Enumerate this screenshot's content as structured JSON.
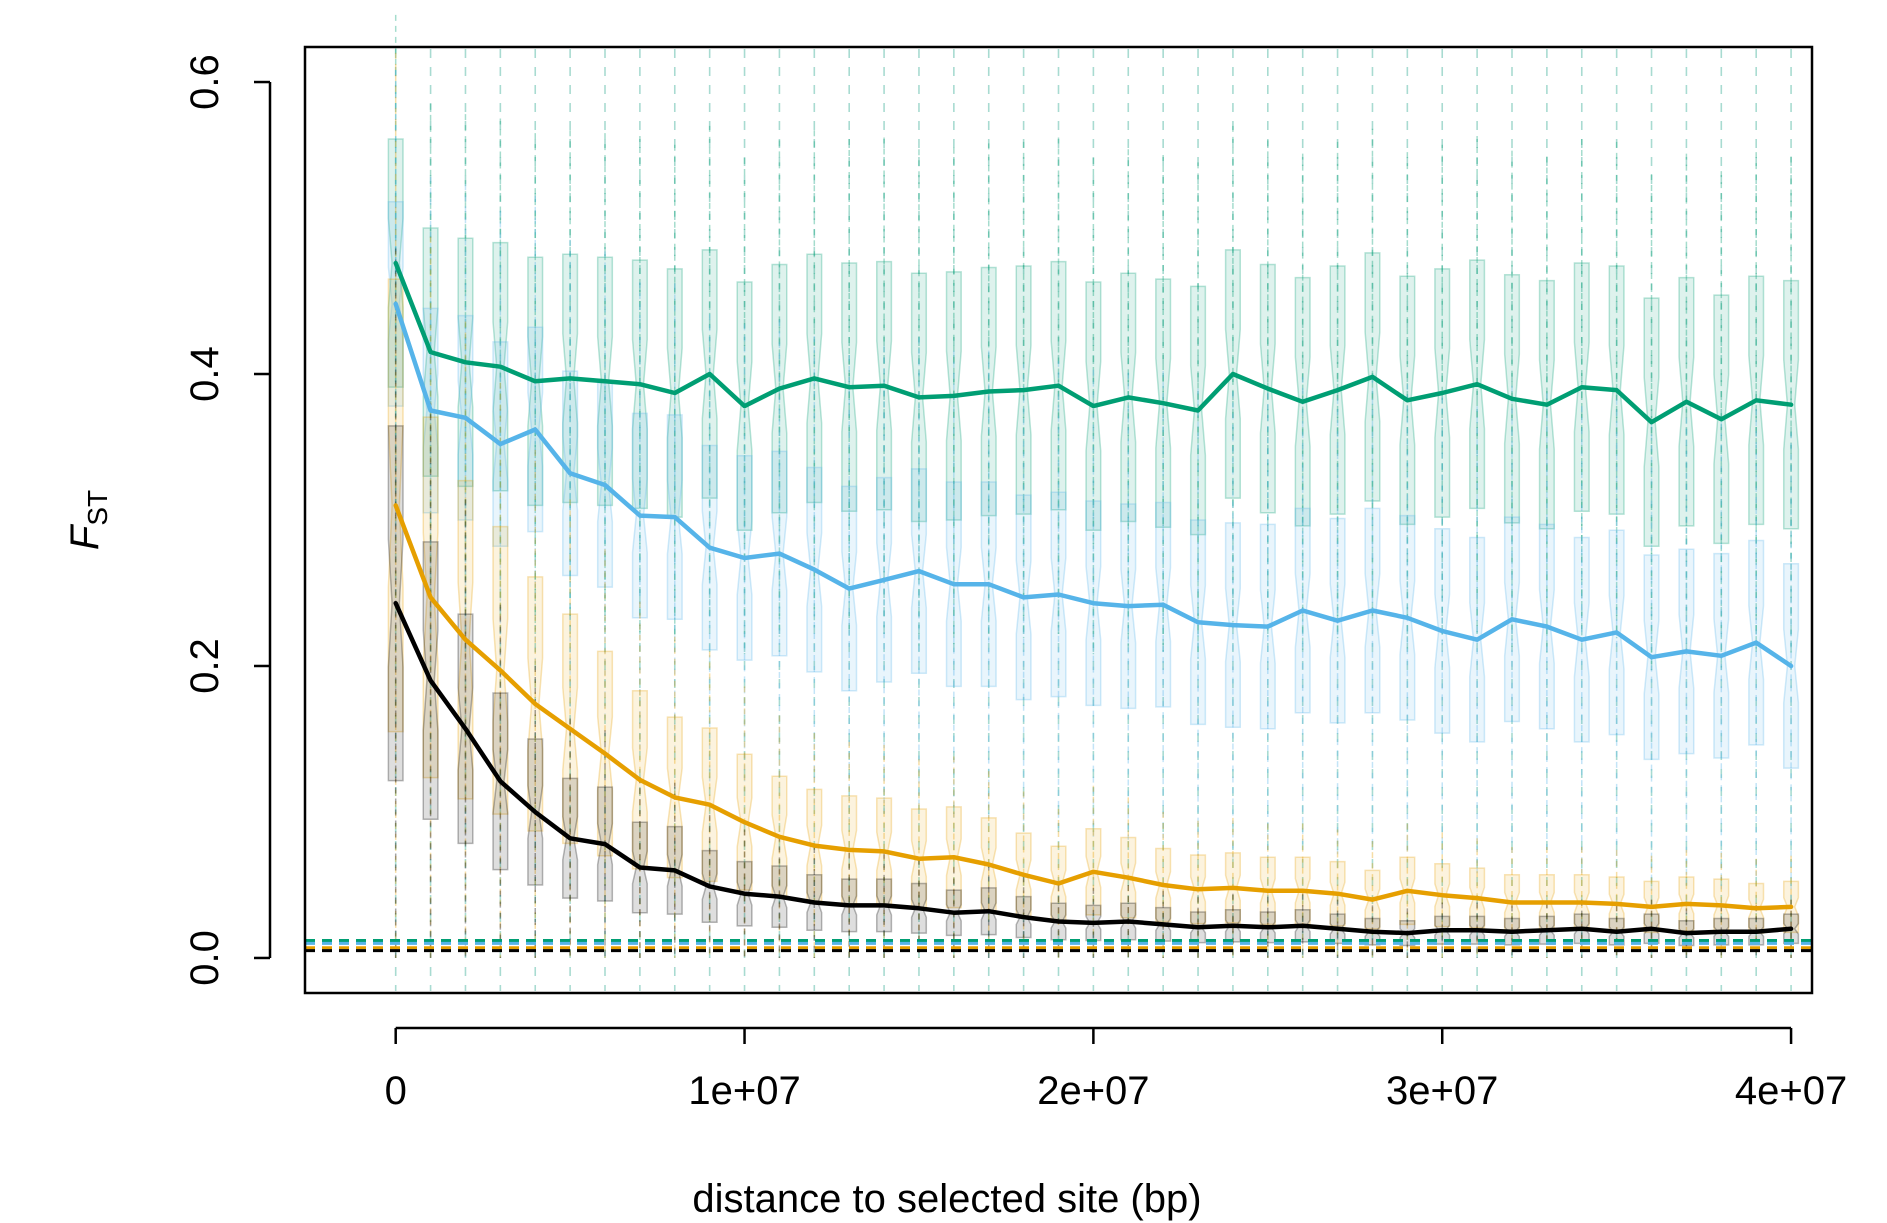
{
  "chart_data": {
    "type": "line",
    "title": "",
    "xlabel": "distance to selected site (bp)",
    "ylabel": "F",
    "ylabel_subscript": "ST",
    "xlim": [
      -2600000,
      40600000
    ],
    "ylim": [
      -0.024,
      0.624
    ],
    "x_ticks": [
      0,
      10000000,
      20000000,
      30000000,
      40000000
    ],
    "x_tick_labels": [
      "0",
      "1e+07",
      "2e+07",
      "3e+07",
      "4e+07"
    ],
    "y_ticks": [
      0.0,
      0.2,
      0.4,
      0.6
    ],
    "y_tick_labels": [
      "0.0",
      "0.2",
      "0.4",
      "0.6"
    ],
    "grid": "vertical dashed lines at each distance bin",
    "legend": "none",
    "x": [
      0,
      1000000,
      2000000,
      3000000,
      4000000,
      5000000,
      6000000,
      7000000,
      8000000,
      9000000,
      10000000,
      11000000,
      12000000,
      13000000,
      14000000,
      15000000,
      16000000,
      17000000,
      18000000,
      19000000,
      20000000,
      21000000,
      22000000,
      23000000,
      24000000,
      25000000,
      26000000,
      27000000,
      28000000,
      29000000,
      30000000,
      31000000,
      32000000,
      33000000,
      34000000,
      35000000,
      36000000,
      37000000,
      38000000,
      39000000,
      40000000
    ],
    "series": [
      {
        "color": "#009E73",
        "values": [
          0.476,
          0.415,
          0.408,
          0.405,
          0.395,
          0.397,
          0.395,
          0.393,
          0.387,
          0.4,
          0.378,
          0.39,
          0.397,
          0.391,
          0.392,
          0.384,
          0.385,
          0.388,
          0.389,
          0.392,
          0.378,
          0.384,
          0.38,
          0.375,
          0.4,
          0.39,
          0.381,
          0.389,
          0.398,
          0.382,
          0.387,
          0.393,
          0.383,
          0.379,
          0.391,
          0.389,
          0.367,
          0.381,
          0.369,
          0.382,
          0.379
        ],
        "box_spread": 0.085,
        "box_whisker": 0.085,
        "baseline": 0.012
      },
      {
        "color": "#56B4E9",
        "values": [
          0.448,
          0.375,
          0.37,
          0.352,
          0.362,
          0.332,
          0.324,
          0.303,
          0.302,
          0.281,
          0.274,
          0.277,
          0.266,
          0.253,
          0.259,
          0.265,
          0.256,
          0.256,
          0.247,
          0.249,
          0.243,
          0.241,
          0.242,
          0.23,
          0.228,
          0.227,
          0.238,
          0.231,
          0.238,
          0.233,
          0.224,
          0.218,
          0.232,
          0.227,
          0.218,
          0.223,
          0.206,
          0.21,
          0.207,
          0.216,
          0.2
        ],
        "box_spread": 0.07,
        "box_whisker": 0.09,
        "baseline": 0.01
      },
      {
        "color": "#E69F00",
        "values": [
          0.31,
          0.247,
          0.218,
          0.197,
          0.174,
          0.157,
          0.14,
          0.122,
          0.11,
          0.105,
          0.093,
          0.083,
          0.077,
          0.074,
          0.073,
          0.068,
          0.069,
          0.064,
          0.057,
          0.051,
          0.059,
          0.055,
          0.05,
          0.047,
          0.048,
          0.046,
          0.046,
          0.044,
          0.04,
          0.046,
          0.043,
          0.041,
          0.038,
          0.038,
          0.038,
          0.037,
          0.035,
          0.037,
          0.036,
          0.034,
          0.035
        ],
        "box_spread": 0.5,
        "box_whisker": 0.5,
        "baseline": 0.007
      },
      {
        "color": "#000000",
        "values": [
          0.243,
          0.19,
          0.157,
          0.121,
          0.1,
          0.082,
          0.078,
          0.062,
          0.06,
          0.049,
          0.044,
          0.042,
          0.038,
          0.036,
          0.036,
          0.034,
          0.031,
          0.032,
          0.028,
          0.025,
          0.024,
          0.025,
          0.023,
          0.021,
          0.022,
          0.021,
          0.022,
          0.02,
          0.018,
          0.017,
          0.019,
          0.019,
          0.018,
          0.019,
          0.02,
          0.018,
          0.02,
          0.017,
          0.018,
          0.018,
          0.02
        ],
        "box_spread": 0.5,
        "box_whisker": 0.5,
        "baseline": 0.005
      }
    ]
  }
}
